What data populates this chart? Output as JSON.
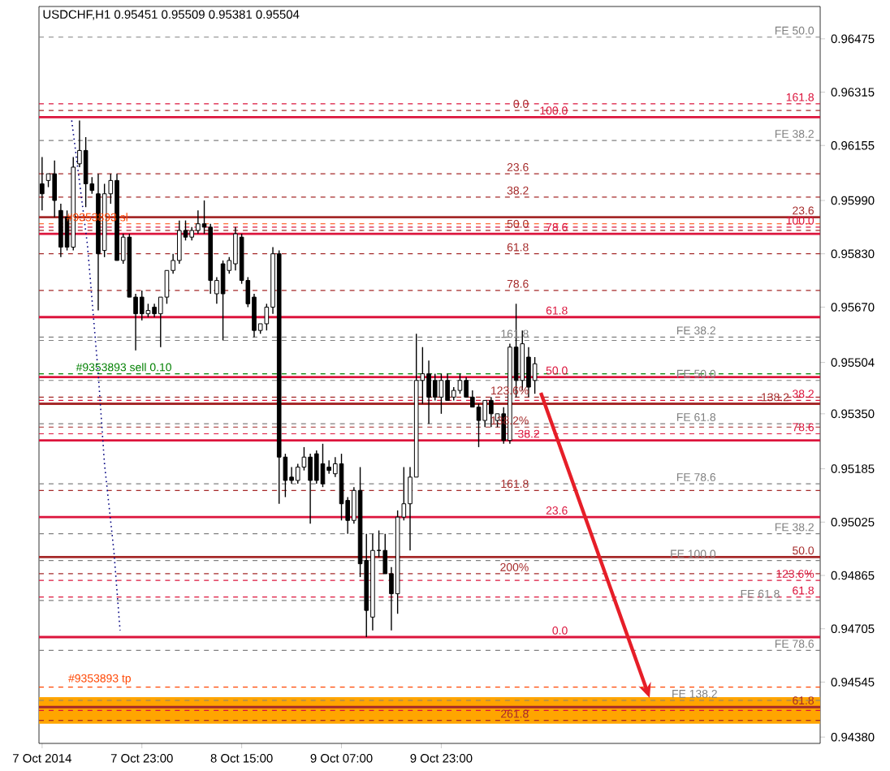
{
  "chart_data": {
    "type": "candlestick",
    "title": "USDCHF,H1 0.95451 0.95509 0.95381 0.95504",
    "x": [
      "2014-10-07T07:00",
      "2014-10-07T08:00",
      "2014-10-07T09:00",
      "2014-10-07T10:00",
      "2014-10-07T11:00",
      "2014-10-07T12:00",
      "2014-10-07T13:00",
      "2014-10-07T14:00",
      "2014-10-07T15:00",
      "2014-10-07T16:00",
      "2014-10-07T17:00",
      "2014-10-07T18:00",
      "2014-10-07T19:00",
      "2014-10-07T20:00",
      "2014-10-07T21:00",
      "2014-10-07T22:00",
      "2014-10-07T23:00",
      "2014-10-08T00:00",
      "2014-10-08T01:00",
      "2014-10-08T02:00",
      "2014-10-08T03:00",
      "2014-10-08T04:00",
      "2014-10-08T05:00",
      "2014-10-08T06:00",
      "2014-10-08T07:00",
      "2014-10-08T08:00",
      "2014-10-08T09:00",
      "2014-10-08T10:00",
      "2014-10-08T11:00",
      "2014-10-08T12:00",
      "2014-10-08T13:00",
      "2014-10-08T14:00",
      "2014-10-08T15:00",
      "2014-10-08T16:00",
      "2014-10-08T17:00",
      "2014-10-08T18:00",
      "2014-10-08T19:00",
      "2014-10-08T20:00",
      "2014-10-08T21:00",
      "2014-10-08T22:00",
      "2014-10-08T23:00",
      "2014-10-09T00:00",
      "2014-10-09T01:00",
      "2014-10-09T02:00",
      "2014-10-09T03:00",
      "2014-10-09T04:00",
      "2014-10-09T05:00",
      "2014-10-09T06:00",
      "2014-10-09T07:00",
      "2014-10-09T08:00",
      "2014-10-09T09:00",
      "2014-10-09T10:00",
      "2014-10-09T11:00",
      "2014-10-09T12:00",
      "2014-10-09T13:00",
      "2014-10-09T14:00",
      "2014-10-09T15:00",
      "2014-10-09T16:00",
      "2014-10-09T17:00",
      "2014-10-09T18:00",
      "2014-10-09T19:00",
      "2014-10-09T20:00",
      "2014-10-09T21:00",
      "2014-10-09T22:00",
      "2014-10-09T23:00",
      "2014-10-10T00:00",
      "2014-10-10T01:00",
      "2014-10-10T02:00",
      "2014-10-10T03:00",
      "2014-10-10T04:00",
      "2014-10-10T05:00",
      "2014-10-10T06:00",
      "2014-10-10T07:00",
      "2014-10-10T08:00",
      "2014-10-10T09:00",
      "2014-10-10T10:00",
      "2014-10-10T11:00",
      "2014-10-10T12:00",
      "2014-10-10T13:00",
      "2014-10-10T14:00"
    ],
    "ohlc": [
      [
        0.9604,
        0.9612,
        0.9596,
        0.9601
      ],
      [
        0.9605,
        0.9607,
        0.9603,
        0.9607
      ],
      [
        0.9607,
        0.9611,
        0.9594,
        0.9599
      ],
      [
        0.9596,
        0.9598,
        0.9582,
        0.9585
      ],
      [
        0.9594,
        0.9596,
        0.9584,
        0.9585
      ],
      [
        0.9585,
        0.9612,
        0.9584,
        0.9609
      ],
      [
        0.961,
        0.9623,
        0.9609,
        0.9614
      ],
      [
        0.9614,
        0.9618,
        0.9597,
        0.9604
      ],
      [
        0.9604,
        0.9606,
        0.9601,
        0.9602
      ],
      [
        0.9601,
        0.9607,
        0.9566,
        0.9583
      ],
      [
        0.9584,
        0.9604,
        0.9582,
        0.9601
      ],
      [
        0.9601,
        0.9607,
        0.9598,
        0.9605
      ],
      [
        0.9605,
        0.9607,
        0.9581,
        0.9581
      ],
      [
        0.9581,
        0.9589,
        0.958,
        0.9588
      ],
      [
        0.9588,
        0.9589,
        0.957,
        0.957
      ],
      [
        0.957,
        0.9571,
        0.9554,
        0.9565
      ],
      [
        0.957,
        0.9572,
        0.9563,
        0.9565
      ],
      [
        0.9565,
        0.9568,
        0.9564,
        0.9566
      ],
      [
        0.9567,
        0.9568,
        0.9564,
        0.9565
      ],
      [
        0.9565,
        0.957,
        0.9555,
        0.957
      ],
      [
        0.957,
        0.9578,
        0.9568,
        0.9578
      ],
      [
        0.9578,
        0.9583,
        0.9577,
        0.9581
      ],
      [
        0.9581,
        0.9593,
        0.958,
        0.959
      ],
      [
        0.959,
        0.9593,
        0.9587,
        0.9588
      ],
      [
        0.9588,
        0.9591,
        0.9587,
        0.959
      ],
      [
        0.959,
        0.9596,
        0.9589,
        0.9592
      ],
      [
        0.9592,
        0.9599,
        0.9589,
        0.9591
      ],
      [
        0.9591,
        0.9592,
        0.9571,
        0.9575
      ],
      [
        0.9571,
        0.9576,
        0.9568,
        0.9575
      ],
      [
        0.958,
        0.9581,
        0.9557,
        0.9571
      ],
      [
        0.9578,
        0.9582,
        0.9577,
        0.9581
      ],
      [
        0.958,
        0.9591,
        0.9578,
        0.9589
      ],
      [
        0.9588,
        0.9589,
        0.9574,
        0.9575
      ],
      [
        0.9575,
        0.9576,
        0.9567,
        0.9568
      ],
      [
        0.957,
        0.9571,
        0.9558,
        0.956
      ],
      [
        0.956,
        0.9562,
        0.9559,
        0.9562
      ],
      [
        0.9562,
        0.9568,
        0.956,
        0.9567
      ],
      [
        0.9567,
        0.9585,
        0.9565,
        0.9583
      ],
      [
        0.9583,
        0.9584,
        0.9508,
        0.9522
      ],
      [
        0.9522,
        0.9523,
        0.951,
        0.9515
      ],
      [
        0.9516,
        0.9519,
        0.9514,
        0.9515
      ],
      [
        0.9515,
        0.952,
        0.9514,
        0.9519
      ],
      [
        0.9519,
        0.9525,
        0.9518,
        0.9522
      ],
      [
        0.9522,
        0.9523,
        0.9502,
        0.9515
      ],
      [
        0.9523,
        0.9524,
        0.9514,
        0.9515
      ],
      [
        0.952,
        0.9526,
        0.9513,
        0.9514
      ],
      [
        0.9519,
        0.9521,
        0.9517,
        0.9518
      ],
      [
        0.9517,
        0.9522,
        0.9516,
        0.952
      ],
      [
        0.952,
        0.9523,
        0.9503,
        0.9508
      ],
      [
        0.9509,
        0.951,
        0.9499,
        0.9503
      ],
      [
        0.9503,
        0.9513,
        0.9502,
        0.9512
      ],
      [
        0.9512,
        0.9519,
        0.9486,
        0.949
      ],
      [
        0.9491,
        0.9499,
        0.9468,
        0.9476
      ],
      [
        0.9474,
        0.9499,
        0.947,
        0.9494
      ],
      [
        0.9494,
        0.95,
        0.9492,
        0.9494
      ],
      [
        0.9494,
        0.9499,
        0.9487,
        0.9487
      ],
      [
        0.9487,
        0.9489,
        0.947,
        0.9481
      ],
      [
        0.9481,
        0.9506,
        0.9475,
        0.9504
      ],
      [
        0.9504,
        0.9519,
        0.9503,
        0.9508
      ],
      [
        0.9508,
        0.9519,
        0.9494,
        0.9516
      ],
      [
        0.9516,
        0.9559,
        0.9516,
        0.9545
      ],
      [
        0.9545,
        0.9555,
        0.9538,
        0.9547
      ],
      [
        0.9547,
        0.9551,
        0.9532,
        0.954
      ],
      [
        0.9545,
        0.9547,
        0.9539,
        0.954
      ],
      [
        0.954,
        0.9547,
        0.9535,
        0.9545
      ],
      [
        0.9545,
        0.9547,
        0.9539,
        0.9539
      ],
      [
        0.954,
        0.9543,
        0.9539,
        0.9542
      ],
      [
        0.9542,
        0.9547,
        0.9541,
        0.9545
      ],
      [
        0.9545,
        0.9546,
        0.954,
        0.954
      ],
      [
        0.954,
        0.9542,
        0.9537,
        0.9537
      ],
      [
        0.9537,
        0.9538,
        0.9525,
        0.9533
      ],
      [
        0.9533,
        0.9539,
        0.9531,
        0.9539
      ],
      [
        0.9539,
        0.954,
        0.9531,
        0.9535
      ],
      [
        0.9533,
        0.9535,
        0.9531,
        0.9535
      ],
      [
        0.9535,
        0.9537,
        0.9526,
        0.9527
      ],
      [
        0.9527,
        0.9556,
        0.9526,
        0.9555
      ],
      [
        0.9555,
        0.9568,
        0.954,
        0.9545
      ],
      [
        0.9545,
        0.956,
        0.9542,
        0.9556
      ],
      [
        0.9552,
        0.9555,
        0.954,
        0.9543
      ],
      [
        0.9545,
        0.9552,
        0.9541,
        0.955
      ]
    ],
    "series": [
      {
        "type": "line",
        "x": [
          "2014-10-07T11:45",
          "2014-10-07T14:15",
          "2014-10-07T16:00",
          "2014-10-07T17:00",
          "2014-10-07T18:30",
          "2014-10-07T19:30"
        ],
        "values": [
          0.9623,
          0.9586,
          0.9547,
          0.952,
          0.9494,
          0.947
        ],
        "color": "#000080",
        "line_style": "dotted"
      }
    ],
    "xlim": [
      "2014-10-07T06:30",
      "2014-10-12T11:45"
    ],
    "ylim": [
      0.94361,
      0.96572
    ],
    "xticks": [
      {
        "value": "2014-10-07T07:00",
        "label": "7 Oct 2014"
      },
      {
        "value": "2014-10-07T23:00",
        "label": "7 Oct 23:00"
      },
      {
        "value": "2014-10-08T15:00",
        "label": "8 Oct 15:00"
      },
      {
        "value": "2014-10-09T07:00",
        "label": "9 Oct 07:00"
      },
      {
        "value": "2014-10-09T23:00",
        "label": "9 Oct 23:00"
      }
    ],
    "yticks": [
      0.96475,
      0.96315,
      0.96155,
      {
        "value": 0.9599,
        "label": "0.95990"
      },
      {
        "value": 0.9583,
        "label": "0.95830"
      },
      {
        "value": 0.9567,
        "label": "0.95670"
      },
      0.95504,
      {
        "value": 0.9535,
        "label": "0.95350"
      },
      0.95185,
      0.95025,
      0.94865,
      0.94705,
      0.94545,
      {
        "value": 0.9438,
        "label": "0.94380"
      }
    ],
    "bands": [
      {
        "axis": "y",
        "from": 0.9442,
        "to": 0.945,
        "color": "#ffa500"
      }
    ],
    "ref_lines": [
      {
        "axis": "y",
        "value": 0.9648,
        "color": "#808080",
        "line_style": "dashed"
      },
      {
        "axis": "y",
        "value": 0.9628,
        "color": "#dc143c",
        "line_style": "dashed"
      },
      {
        "axis": "y",
        "value": 0.9626,
        "color": "#a52a2a",
        "line_style": "dashed"
      },
      {
        "axis": "y",
        "value": 0.9624,
        "color": "#dc143c",
        "line_style": "solid"
      },
      {
        "axis": "y",
        "value": 0.9617,
        "color": "#808080",
        "line_style": "dashed"
      },
      {
        "axis": "y",
        "value": 0.9607,
        "color": "#a52a2a",
        "line_style": "dashed"
      },
      {
        "axis": "y",
        "value": 0.96,
        "color": "#a52a2a",
        "line_style": "dashed"
      },
      {
        "axis": "y",
        "value": 0.9594,
        "color": "#a52a2a",
        "line_style": "solid"
      },
      {
        "axis": "y",
        "value": 0.9592,
        "color": "#ff4500",
        "line_style": "dashed"
      },
      {
        "axis": "y",
        "value": 0.9591,
        "color": "#dc143c",
        "line_style": "dashed"
      },
      {
        "axis": "y",
        "value": 0.959,
        "color": "#a52a2a",
        "line_style": "dashed"
      },
      {
        "axis": "y",
        "value": 0.9589,
        "color": "#dc143c",
        "line_style": "solid"
      },
      {
        "axis": "y",
        "value": 0.9583,
        "color": "#a52a2a",
        "line_style": "dashed"
      },
      {
        "axis": "y",
        "value": 0.9572,
        "color": "#a52a2a",
        "line_style": "dashed"
      },
      {
        "axis": "y",
        "value": 0.9564,
        "color": "#dc143c",
        "line_style": "solid"
      },
      {
        "axis": "y",
        "value": 0.9558,
        "color": "#808080",
        "line_style": "dashed"
      },
      {
        "axis": "y",
        "value": 0.9557,
        "color": "#808080",
        "line_style": "dashed"
      },
      {
        "axis": "y",
        "value": 0.9547,
        "color": "#008000",
        "line_style": "dashed"
      },
      {
        "axis": "y",
        "value": 0.9545,
        "color": "#808080",
        "line_style": "dashed"
      },
      {
        "axis": "y",
        "value": 0.9546,
        "color": "#dc143c",
        "line_style": "solid"
      },
      {
        "axis": "y",
        "value": 0.954,
        "color": "#a52a2a",
        "line_style": "dashed"
      },
      {
        "axis": "y",
        "value": 0.9539,
        "color": "#dc143c",
        "line_style": "dashed"
      },
      {
        "axis": "y",
        "value": 0.9538,
        "color": "#a52a2a",
        "line_style": "solid"
      },
      {
        "axis": "y",
        "value": 0.9532,
        "color": "#808080",
        "line_style": "dashed"
      },
      {
        "axis": "y",
        "value": 0.9531,
        "color": "#a52a2a",
        "line_style": "dashed"
      },
      {
        "axis": "y",
        "value": 0.9529,
        "color": "#dc143c",
        "line_style": "dashed"
      },
      {
        "axis": "y",
        "value": 0.9527,
        "color": "#dc143c",
        "line_style": "solid"
      },
      {
        "axis": "y",
        "value": 0.9514,
        "color": "#808080",
        "line_style": "dashed"
      },
      {
        "axis": "y",
        "value": 0.9512,
        "color": "#a52a2a",
        "line_style": "dashed"
      },
      {
        "axis": "y",
        "value": 0.9504,
        "color": "#dc143c",
        "line_style": "solid"
      },
      {
        "axis": "y",
        "value": 0.9499,
        "color": "#808080",
        "line_style": "dashed"
      },
      {
        "axis": "y",
        "value": 0.9492,
        "color": "#a52a2a",
        "line_style": "solid"
      },
      {
        "axis": "y",
        "value": 0.9491,
        "color": "#808080",
        "line_style": "dashed"
      },
      {
        "axis": "y",
        "value": 0.9487,
        "color": "#a52a2a",
        "line_style": "dashed"
      },
      {
        "axis": "y",
        "value": 0.9485,
        "color": "#dc143c",
        "line_style": "dashed"
      },
      {
        "axis": "y",
        "value": 0.948,
        "color": "#dc143c",
        "line_style": "dashed"
      },
      {
        "axis": "y",
        "value": 0.9479,
        "color": "#808080",
        "line_style": "dashed"
      },
      {
        "axis": "y",
        "value": 0.9468,
        "color": "#dc143c",
        "line_style": "solid"
      },
      {
        "axis": "y",
        "value": 0.9464,
        "color": "#808080",
        "line_style": "dashed"
      },
      {
        "axis": "y",
        "value": 0.9453,
        "color": "#ff4500",
        "line_style": "dashed"
      },
      {
        "axis": "y",
        "value": 0.9449,
        "color": "#808080",
        "line_style": "dashed"
      },
      {
        "axis": "y",
        "value": 0.9447,
        "color": "#a52a2a",
        "line_style": "solid"
      },
      {
        "axis": "y",
        "value": 0.9446,
        "color": "#dc143c",
        "line_style": "dashed"
      },
      {
        "axis": "y",
        "value": 0.9443,
        "color": "#a52a2a",
        "line_style": "dashed"
      }
    ],
    "annotations": [
      {
        "text": "FE 50.0",
        "x": "2014-10-12T11:00",
        "y": 0.9648
      },
      {
        "text": "161.8",
        "x": "2014-10-12T11:00",
        "y": 0.9628
      },
      {
        "text": "0.0",
        "x": "2014-10-10T13:15",
        "y": 0.9626
      },
      {
        "text": "100.0",
        "x": "2014-10-10T19:30",
        "y": 0.9624
      },
      {
        "text": "FE 38.2",
        "x": "2014-10-12T11:00",
        "y": 0.9617
      },
      {
        "text": "23.6",
        "x": "2014-10-10T13:15",
        "y": 0.9607
      },
      {
        "text": "38.2",
        "x": "2014-10-10T13:15",
        "y": 0.96
      },
      {
        "text": "23.6",
        "x": "2014-10-12T11:00",
        "y": 0.9594
      },
      {
        "text": "#9353893 sl",
        "x": "2014-10-07T21:00",
        "y": 0.9592
      },
      {
        "text": "100.0",
        "x": "2014-10-12T11:00",
        "y": 0.9591
      },
      {
        "text": "50.0",
        "x": "2014-10-10T13:15",
        "y": 0.959
      },
      {
        "text": "78.6",
        "x": "2014-10-10T19:30",
        "y": 0.9589
      },
      {
        "text": "61.8",
        "x": "2014-10-10T13:15",
        "y": 0.9583
      },
      {
        "text": "78.6",
        "x": "2014-10-10T13:15",
        "y": 0.9572
      },
      {
        "text": "61.8",
        "x": "2014-10-10T19:30",
        "y": 0.9564
      },
      {
        "text": "FE 38.2",
        "x": "2014-10-11T19:15",
        "y": 0.9558
      },
      {
        "text": "161.8",
        "x": "2014-10-10T13:15",
        "y": 0.9557
      },
      {
        "text": "#9353893 sell 0.10",
        "x": "2014-10-08T04:00",
        "y": 0.9547
      },
      {
        "text": "FE 50.0",
        "x": "2014-10-11T19:15",
        "y": 0.9545
      },
      {
        "text": "50.0",
        "x": "2014-10-10T19:30",
        "y": 0.9546
      },
      {
        "text": "123.6%",
        "x": "2014-10-10T13:15",
        "y": 0.954
      },
      {
        "text": "38.2",
        "x": "2014-10-12T11:00",
        "y": 0.9539
      },
      {
        "text": "138.2",
        "x": "2014-10-12T07:00",
        "y": 0.9538
      },
      {
        "text": "FE 61.8",
        "x": "2014-10-11T19:15",
        "y": 0.9532
      },
      {
        "text": "138.2%",
        "x": "2014-10-10T13:15",
        "y": 0.9531
      },
      {
        "text": "78.6",
        "x": "2014-10-12T11:00",
        "y": 0.9529
      },
      {
        "text": "38.2",
        "x": "2014-10-10T15:00",
        "y": 0.9527
      },
      {
        "text": "FE 78.6",
        "x": "2014-10-11T19:15",
        "y": 0.9514
      },
      {
        "text": "161.8",
        "x": "2014-10-10T13:15",
        "y": 0.9512
      },
      {
        "text": "23.6",
        "x": "2014-10-10T19:30",
        "y": 0.9504
      },
      {
        "text": "FE 38.2",
        "x": "2014-10-12T11:00",
        "y": 0.9499
      },
      {
        "text": "50.0",
        "x": "2014-10-12T11:00",
        "y": 0.9492
      },
      {
        "text": "FE 100.0",
        "x": "2014-10-11T19:15",
        "y": 0.9491
      },
      {
        "text": "200%",
        "x": "2014-10-10T13:15",
        "y": 0.9487
      },
      {
        "text": "123.6%",
        "x": "2014-10-12T11:00",
        "y": 0.9485
      },
      {
        "text": "61.8",
        "x": "2014-10-12T11:00",
        "y": 0.948
      },
      {
        "text": "FE 61.8",
        "x": "2014-10-12T05:30",
        "y": 0.9479
      },
      {
        "text": "0.0",
        "x": "2014-10-10T19:30",
        "y": 0.9468
      },
      {
        "text": "FE 78.6",
        "x": "2014-10-12T11:00",
        "y": 0.9464
      },
      {
        "text": "#9353893 tp",
        "x": "2014-10-07T21:30",
        "y": 0.9453
      },
      {
        "text": "FE 138.2",
        "x": "2014-10-11T19:30",
        "y": 0.9449
      },
      {
        "text": "61.8",
        "x": "2014-10-12T11:00",
        "y": 0.9447
      },
      {
        "text": "261.8",
        "x": "2014-10-10T13:15",
        "y": 0.9443
      }
    ]
  }
}
